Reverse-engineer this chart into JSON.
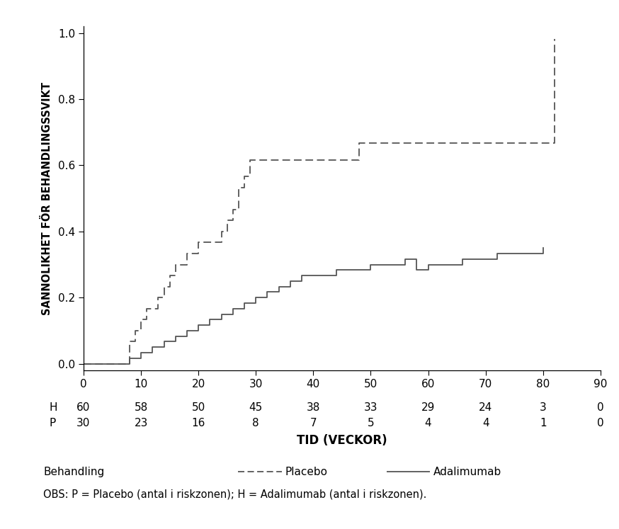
{
  "ylabel": "SANNOLIKHET FÖR BEHANDLINGSSVIKT",
  "xlabel": "TID (VECKOR)",
  "xlim": [
    0,
    90
  ],
  "ylim": [
    -0.02,
    1.02
  ],
  "xticks": [
    0,
    10,
    20,
    30,
    40,
    50,
    60,
    70,
    80,
    90
  ],
  "yticks": [
    0.0,
    0.2,
    0.4,
    0.6,
    0.8,
    1.0
  ],
  "background_color": "#ffffff",
  "line_color": "#555555",
  "placebo_t": [
    0,
    7,
    8,
    9,
    10,
    11,
    13,
    14,
    15,
    16,
    18,
    20,
    23,
    24,
    25,
    26,
    27,
    28,
    29,
    47,
    48,
    82
  ],
  "placebo_p": [
    0,
    0,
    0.067,
    0.1,
    0.133,
    0.167,
    0.2,
    0.233,
    0.267,
    0.3,
    0.333,
    0.367,
    0.367,
    0.4,
    0.433,
    0.467,
    0.533,
    0.567,
    0.617,
    0.617,
    0.667,
    0.983
  ],
  "adalimumab_t": [
    0,
    6,
    8,
    10,
    12,
    14,
    16,
    18,
    20,
    22,
    24,
    26,
    28,
    30,
    32,
    34,
    36,
    38,
    42,
    44,
    48,
    50,
    54,
    56,
    58,
    60,
    64,
    66,
    70,
    72,
    74,
    76,
    78,
    80
  ],
  "adalimumab_p": [
    0,
    0,
    0.017,
    0.033,
    0.05,
    0.067,
    0.083,
    0.1,
    0.117,
    0.133,
    0.15,
    0.167,
    0.183,
    0.2,
    0.217,
    0.233,
    0.25,
    0.267,
    0.267,
    0.283,
    0.283,
    0.3,
    0.3,
    0.317,
    0.283,
    0.3,
    0.3,
    0.317,
    0.317,
    0.333,
    0.333,
    0.333,
    0.333,
    0.35
  ],
  "risk_table_x_positions": [
    0,
    10,
    20,
    30,
    40,
    50,
    60,
    70,
    80,
    90
  ],
  "risk_H": [
    "60",
    "58",
    "50",
    "45",
    "38",
    "33",
    "29",
    "24",
    "3",
    "0"
  ],
  "risk_P": [
    "30",
    "23",
    "16",
    "8",
    "7",
    "5",
    "4",
    "4",
    "1",
    "0"
  ],
  "legend_text": "Behandling",
  "legend_placebo": "Placebo",
  "legend_adalimumab": "Adalimumab",
  "obs_text": "OBS: P = Placebo (antal i riskzonen); H = Adalimumab (antal i riskzonen)."
}
